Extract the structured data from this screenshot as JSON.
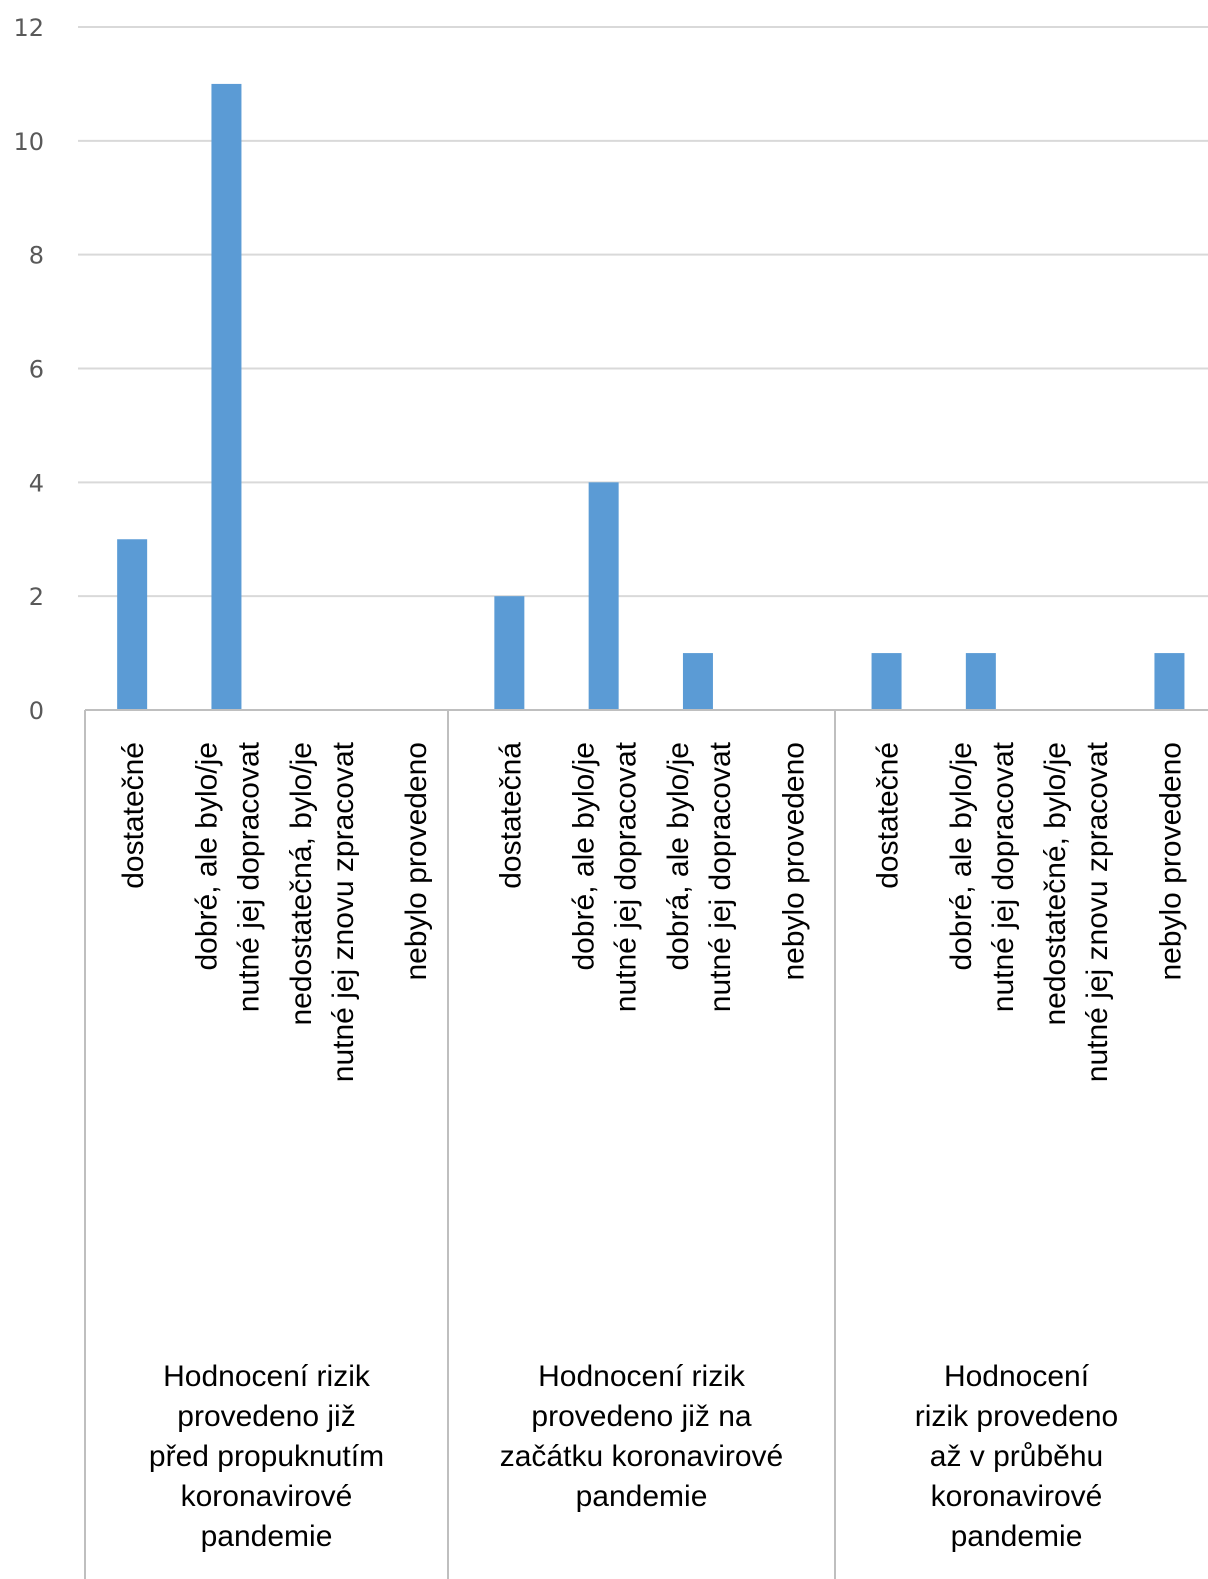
{
  "chart_data": {
    "type": "bar",
    "title": "",
    "xlabel": "",
    "ylabel": "",
    "ylim": [
      0,
      12
    ],
    "yticks": [
      0,
      2,
      4,
      6,
      8,
      10,
      12
    ],
    "grid": true,
    "legend": "none",
    "bar_color": "#5b9bd5",
    "groups": [
      {
        "label": "Hodnocení rizik provedeno již před propuknutím koronavirové pandemie",
        "label_lines": [
          "Hodnocení rizik",
          "provedeno již",
          "před propuknutím",
          "koronavirové",
          "pandemie"
        ],
        "categories": [
          {
            "label_lines": [
              "dostatečné"
            ],
            "value": 3
          },
          {
            "label_lines": [
              "dobré, ale bylo/je",
              "nutné jej dopracovat"
            ],
            "value": 11
          },
          {
            "label_lines": [
              "nedostatečná, bylo/je",
              "nutné jej znovu zpracovat"
            ],
            "value": 0
          },
          {
            "label_lines": [
              "nebylo provedeno"
            ],
            "value": 0
          }
        ]
      },
      {
        "label": "Hodnocení rizik provedeno již na začátku koronavirové pandemie",
        "label_lines": [
          "Hodnocení rizik",
          "provedeno již na",
          "začátku koronavirové",
          "pandemie"
        ],
        "categories": [
          {
            "label_lines": [
              "dostatečná"
            ],
            "value": 2
          },
          {
            "label_lines": [
              "dobré, ale bylo/je",
              "nutné jej dopracovat"
            ],
            "value": 4
          },
          {
            "label_lines": [
              "dobrá, ale bylo/je",
              "nutné jej dopracovat"
            ],
            "value": 1
          },
          {
            "label_lines": [
              "nebylo provedeno"
            ],
            "value": 0
          }
        ]
      },
      {
        "label": "Hodnocení rizik provedeno až v průběhu koronavirové pandemie",
        "label_lines": [
          "Hodnocení",
          "rizik provedeno",
          "až v průběhu",
          "koronavirové",
          "pandemie"
        ],
        "categories": [
          {
            "label_lines": [
              "dostatečné"
            ],
            "value": 1
          },
          {
            "label_lines": [
              "dobré, ale bylo/je",
              "nutné jej dopracovat"
            ],
            "value": 1
          },
          {
            "label_lines": [
              "nedostatečné, bylo/je",
              "nutné jej znovu zpracovat"
            ],
            "value": 0
          },
          {
            "label_lines": [
              "nebylo provedeno"
            ],
            "value": 1
          }
        ]
      }
    ]
  }
}
